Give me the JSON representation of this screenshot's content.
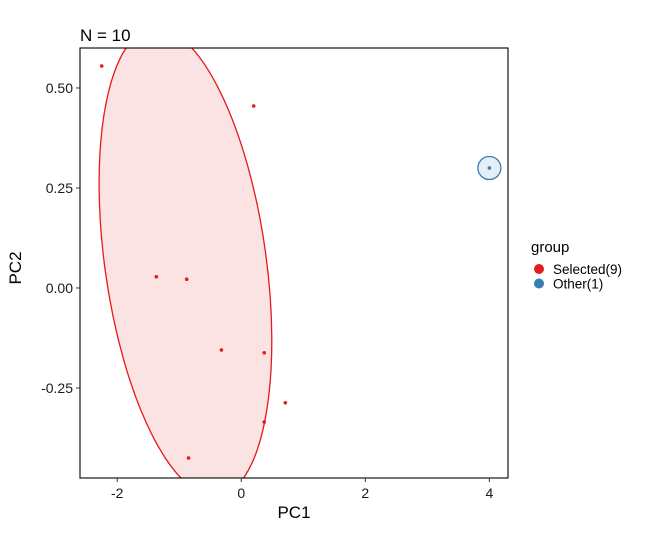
{
  "chart_data": {
    "type": "scatter",
    "title": "N = 10",
    "xlabel": "PC1",
    "ylabel": "PC2",
    "xlim": [
      -2.6,
      4.3
    ],
    "ylim": [
      -0.475,
      0.6
    ],
    "xticks": [
      -2,
      0,
      2,
      4
    ],
    "xtick_labels": [
      "-2",
      "0",
      "2",
      "4"
    ],
    "yticks": [
      -0.25,
      0,
      0.25,
      0.5
    ],
    "ytick_labels": [
      "-0.25",
      "0.00",
      "0.25",
      "0.50"
    ],
    "grid": false,
    "legend": {
      "title": "group",
      "placement": "right"
    },
    "series": [
      {
        "name": "Selected(9)",
        "color": "#E41A1C",
        "fill": "#FBE3E3",
        "points": [
          [
            -2.25,
            0.555
          ],
          [
            0.2,
            0.455
          ],
          [
            -1.37,
            0.028
          ],
          [
            -0.88,
            0.022
          ],
          [
            -0.32,
            -0.155
          ],
          [
            0.37,
            -0.162
          ],
          [
            0.71,
            -0.287
          ],
          [
            0.37,
            -0.335
          ],
          [
            -0.85,
            -0.425
          ]
        ],
        "ellipse": {
          "center": [
            -0.9,
            0.065
          ],
          "rx_data": 1.3,
          "ry_data": 0.59,
          "angle_deg": -8
        }
      },
      {
        "name": "Other(1)",
        "color": "#377EB8",
        "fill": "#E6EEF6",
        "points": [
          [
            4.0,
            0.3
          ]
        ],
        "ellipse": {
          "center": [
            4.0,
            0.3
          ],
          "rx_data": 0.18,
          "ry_data": 0.028,
          "angle_deg": 0
        }
      }
    ]
  }
}
